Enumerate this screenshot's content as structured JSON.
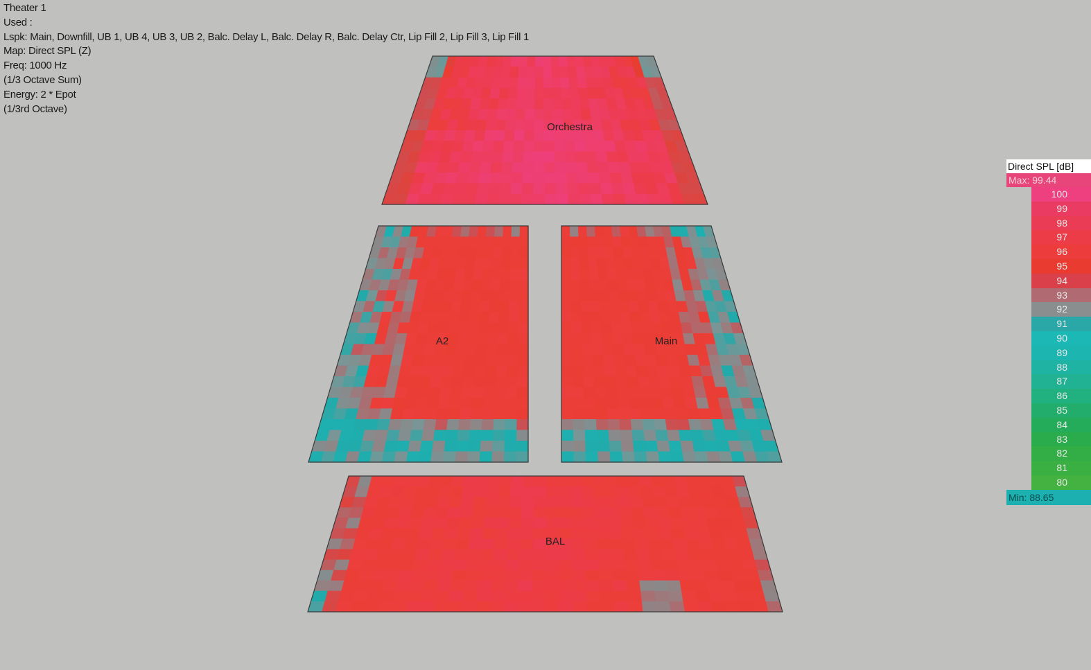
{
  "info": {
    "title": "Theater 1",
    "used": "Used :",
    "lspk": "Lspk: Main, Downfill, UB 1, UB 4, UB 3, UB 2, Balc. Delay L, Balc. Delay R, Balc. Delay Ctr, Lip Fill 2, Lip Fill 3, Lip Fill 1",
    "map": "Map: Direct SPL (Z)",
    "freq": "Freq: 1000 Hz",
    "sum": "(1/3 Octave Sum)",
    "energy": "Energy: 2 * Epot",
    "octave": "(1/3rd Octave)"
  },
  "legend": {
    "title": "Direct SPL [dB]",
    "max_label": "Max: 99.44",
    "min_label": "Min: 88.65",
    "max_color": "#e8457a",
    "min_color": "#1cb0b0",
    "ticks": [
      {
        "v": "100",
        "c": "#ee3f7e"
      },
      {
        "v": "99",
        "c": "#ea3c62"
      },
      {
        "v": "98",
        "c": "#ea3d55"
      },
      {
        "v": "97",
        "c": "#ec3c48"
      },
      {
        "v": "96",
        "c": "#ec3d3c"
      },
      {
        "v": "95",
        "c": "#e93b30"
      },
      {
        "v": "94",
        "c": "#d9404a"
      },
      {
        "v": "93",
        "c": "#b06a72"
      },
      {
        "v": "92",
        "c": "#8b8e8e"
      },
      {
        "v": "91",
        "c": "#2aa8a8"
      },
      {
        "v": "90",
        "c": "#1cb8b6"
      },
      {
        "v": "89",
        "c": "#1db5b0"
      },
      {
        "v": "88",
        "c": "#1fb3a4"
      },
      {
        "v": "87",
        "c": "#21b294"
      },
      {
        "v": "86",
        "c": "#21b080"
      },
      {
        "v": "85",
        "c": "#22ad6c"
      },
      {
        "v": "84",
        "c": "#25ac5a"
      },
      {
        "v": "83",
        "c": "#2aac4c"
      },
      {
        "v": "82",
        "c": "#33ae46"
      },
      {
        "v": "81",
        "c": "#3bb042"
      },
      {
        "v": "80",
        "c": "#44b240"
      }
    ]
  },
  "chart_data": {
    "type": "heatmap",
    "metric": "Direct SPL [dB]",
    "range": {
      "max": 99.44,
      "min": 88.65
    },
    "zones": [
      {
        "name": "Orchestra",
        "typical_spl": 97,
        "peak_spl": 99,
        "edge_spl": 93
      },
      {
        "name": "A2",
        "typical_spl": 96,
        "edge_spl": 92,
        "front_row_spl": 90
      },
      {
        "name": "Main",
        "typical_spl": 96,
        "edge_spl": 92,
        "front_row_spl": 90
      },
      {
        "name": "BAL",
        "typical_spl": 96,
        "peak_spl": 97,
        "edge_spl": 93
      }
    ]
  }
}
